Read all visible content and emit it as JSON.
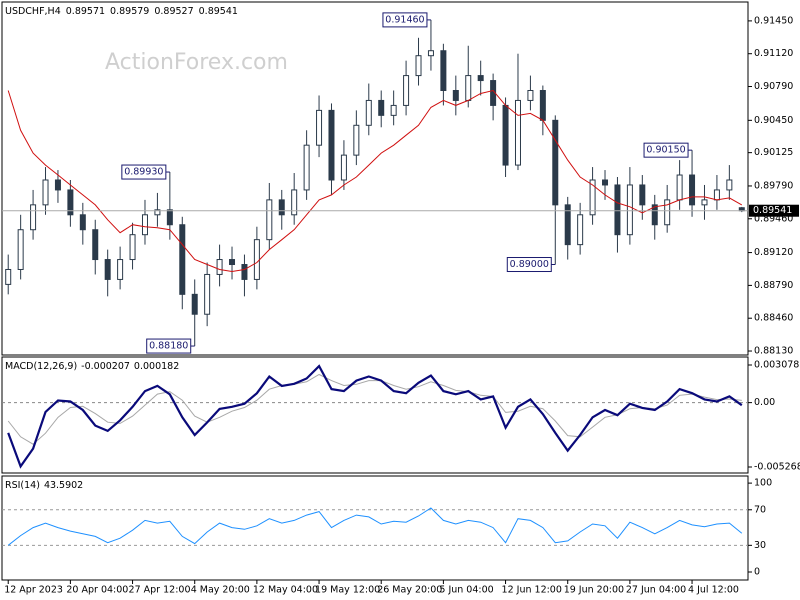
{
  "chart_data": [
    {
      "type": "candlestick",
      "title": "USDCHF,H4",
      "watermark": "ActionForex.com",
      "categories": [
        "12 Apr 2023",
        null,
        null,
        null,
        null,
        "20 Apr 04:00",
        null,
        null,
        null,
        null,
        "27 Apr 12:00",
        null,
        null,
        null,
        null,
        "4 May 20:00",
        null,
        null,
        null,
        null,
        "12 May 04:00",
        null,
        null,
        null,
        null,
        "19 May 12:00",
        null,
        null,
        null,
        null,
        "26 May 20:00",
        null,
        null,
        null,
        null,
        "5 Jun 04:00",
        null,
        null,
        null,
        null,
        "12 Jun 12:00",
        null,
        null,
        null,
        null,
        "19 Jun 20:00",
        null,
        null,
        null,
        null,
        "27 Jun 04:00",
        null,
        null,
        null,
        null,
        "4 Jul 12:00",
        null,
        null,
        null,
        null
      ],
      "open": [
        0.888,
        0.8895,
        0.8935,
        0.896,
        0.8985,
        0.8975,
        0.895,
        0.8935,
        0.8905,
        0.8885,
        0.8905,
        0.893,
        0.895,
        0.8955,
        0.894,
        0.887,
        0.885,
        0.889,
        0.8905,
        0.89,
        0.8885,
        0.8925,
        0.8965,
        0.895,
        0.8975,
        0.902,
        0.9055,
        0.8985,
        0.901,
        0.904,
        0.9065,
        0.905,
        0.906,
        0.909,
        0.911,
        0.9115,
        0.9075,
        0.9065,
        0.909,
        0.9085,
        0.906,
        0.9,
        0.9065,
        0.9075,
        0.9045,
        0.896,
        0.892,
        0.895,
        0.8985,
        0.898,
        0.893,
        0.898,
        0.896,
        0.894,
        0.8965,
        0.899,
        0.896,
        0.8965,
        0.8975,
        0.89571
      ],
      "high": [
        0.891,
        0.895,
        0.8975,
        0.8998,
        0.8995,
        0.8985,
        0.8962,
        0.8945,
        0.8915,
        0.8918,
        0.8942,
        0.8965,
        0.8972,
        0.8993,
        0.8948,
        0.8885,
        0.8902,
        0.892,
        0.8918,
        0.891,
        0.8938,
        0.8982,
        0.8975,
        0.8992,
        0.9035,
        0.907,
        0.9062,
        0.9025,
        0.9055,
        0.9082,
        0.9075,
        0.9075,
        0.9105,
        0.9128,
        0.9146,
        0.9122,
        0.909,
        0.912,
        0.9105,
        0.9092,
        0.9068,
        0.9112,
        0.909,
        0.908,
        0.905,
        0.8968,
        0.8962,
        0.8998,
        0.8995,
        0.8988,
        0.8998,
        0.899,
        0.897,
        0.898,
        0.9005,
        0.9015,
        0.898,
        0.899,
        0.9,
        0.89579
      ],
      "low": [
        0.887,
        0.8885,
        0.8925,
        0.895,
        0.8962,
        0.8938,
        0.892,
        0.889,
        0.8868,
        0.8875,
        0.8895,
        0.892,
        0.8938,
        0.8925,
        0.8855,
        0.8818,
        0.8838,
        0.8878,
        0.8885,
        0.8868,
        0.8875,
        0.8915,
        0.8935,
        0.894,
        0.8965,
        0.9008,
        0.897,
        0.8975,
        0.9,
        0.903,
        0.9038,
        0.904,
        0.905,
        0.908,
        0.9095,
        0.906,
        0.905,
        0.9058,
        0.907,
        0.9045,
        0.8988,
        0.8995,
        0.9055,
        0.903,
        0.89,
        0.8905,
        0.891,
        0.894,
        0.8965,
        0.8912,
        0.892,
        0.8945,
        0.8925,
        0.8932,
        0.8955,
        0.8948,
        0.8945,
        0.8955,
        0.8965,
        0.89527
      ],
      "close": [
        0.8895,
        0.8935,
        0.896,
        0.8985,
        0.8975,
        0.895,
        0.8935,
        0.8905,
        0.8885,
        0.8905,
        0.893,
        0.895,
        0.8955,
        0.894,
        0.887,
        0.885,
        0.889,
        0.8905,
        0.89,
        0.8885,
        0.8925,
        0.8965,
        0.895,
        0.8975,
        0.902,
        0.9055,
        0.8985,
        0.901,
        0.904,
        0.9065,
        0.905,
        0.906,
        0.909,
        0.911,
        0.9115,
        0.9075,
        0.9065,
        0.909,
        0.9085,
        0.906,
        0.9,
        0.9065,
        0.9075,
        0.9045,
        0.896,
        0.892,
        0.895,
        0.8985,
        0.898,
        0.893,
        0.898,
        0.896,
        0.894,
        0.8965,
        0.899,
        0.896,
        0.8965,
        0.8975,
        0.8985,
        0.89541
      ],
      "color": "#2b3a4a",
      "series": [
        {
          "color": "#d01010",
          "values": [
            0.9075,
            0.9035,
            0.9012,
            0.9,
            0.899,
            0.898,
            0.897,
            0.896,
            0.8945,
            0.8932,
            0.894,
            0.8938,
            0.8937,
            0.8935,
            0.892,
            0.8905,
            0.89,
            0.8895,
            0.8893,
            0.8895,
            0.8902,
            0.8915,
            0.8925,
            0.8935,
            0.895,
            0.8965,
            0.897,
            0.898,
            0.8988,
            0.9,
            0.9012,
            0.902,
            0.903,
            0.904,
            0.9058,
            0.9065,
            0.906,
            0.9065,
            0.9072,
            0.9075,
            0.906,
            0.905,
            0.9052,
            0.9045,
            0.9025,
            0.9005,
            0.8988,
            0.898,
            0.897,
            0.8962,
            0.8958,
            0.8952,
            0.8958,
            0.896,
            0.8965,
            0.8968,
            0.8968,
            0.8965,
            0.8967,
            0.896
          ]
        }
      ],
      "annotations": [
        {
          "label": "0.91460",
          "value": 0.9146
        },
        {
          "label": "0.89930",
          "value": 0.8993
        },
        {
          "label": "0.88180",
          "value": 0.8818
        },
        {
          "label": "0.90150",
          "value": 0.9015
        },
        {
          "label": "0.89000",
          "value": 0.89
        }
      ],
      "ylim": [
        0.8809,
        0.9164
      ],
      "yticks": [
        {
          "value": 0.8813,
          "label": "0.88130"
        },
        {
          "value": 0.8846,
          "label": "0.88460"
        },
        {
          "value": 0.8879,
          "label": "0.88790"
        },
        {
          "value": 0.8912,
          "label": "0.89120"
        },
        {
          "value": 0.8946,
          "label": "0.89460"
        },
        {
          "value": 0.8979,
          "label": "0.89790"
        },
        0.90125,
        {
          "value": 0.9045,
          "label": "0.90450"
        },
        {
          "value": 0.9079,
          "label": "0.90790"
        },
        {
          "value": 0.9112,
          "label": "0.91120"
        },
        {
          "value": 0.9145,
          "label": "0.91450"
        }
      ]
    },
    {
      "type": "macd",
      "title": "MACD(12,26,9)",
      "series": [
        {
          "color": "#0a0a7a",
          "values": [
            -0.00248,
            -0.00522,
            -0.00376,
            -0.00077,
            0.00017,
            9e-05,
            -0.0006,
            -0.00188,
            -0.00231,
            -0.00145,
            -0.00034,
            0.00094,
            0.00137,
            0.00068,
            -0.0012,
            -0.00265,
            -0.00162,
            -0.00051,
            -0.00034,
            -9e-05,
            0.00077,
            0.00214,
            0.00137,
            0.00154,
            0.00197,
            0.00299,
            0.00111,
            0.00094,
            0.0018,
            0.00214,
            0.0018,
            0.00094,
            0.00077,
            0.00162,
            0.00222,
            0.00094,
            0.00068,
            0.00094,
            0.00026,
            0.00051,
            -0.00205,
            -0.00034,
            0.00026,
            -0.00094,
            -0.00248,
            -0.00393,
            -0.00265,
            -0.0012,
            -0.0006,
            -0.00103,
            -9e-05,
            -0.00043,
            -0.0006,
            9e-05,
            0.00111,
            0.00077,
            0.00026,
            9e-05,
            0.00051,
            -0.000207
          ]
        },
        {
          "color": "#a8a8a8",
          "values": [
            -0.0015,
            -0.0028,
            -0.0034,
            -0.0025,
            -0.0012,
            -0.0004,
            -0.0003,
            -0.0009,
            -0.0016,
            -0.0017,
            -0.0011,
            -0.0002,
            0.0007,
            0.0009,
            0.0002,
            -0.0011,
            -0.0016,
            -0.0012,
            -0.0007,
            -0.0004,
            0.0002,
            0.0011,
            0.0014,
            0.0015,
            0.0017,
            0.0023,
            0.0018,
            0.0014,
            0.0015,
            0.0018,
            0.0018,
            0.0014,
            0.0011,
            0.0013,
            0.0017,
            0.0014,
            0.001,
            0.0009,
            0.0006,
            0.0005,
            -0.0008,
            -0.0007,
            -0.0003,
            -0.0005,
            -0.0015,
            -0.0027,
            -0.0028,
            -0.002,
            -0.0012,
            -0.001,
            -0.0005,
            -0.0004,
            -0.0005,
            -0.0002,
            0.0006,
            0.0007,
            0.00045,
            0.00025,
            0.0003,
            0.000182
          ]
        }
      ],
      "ylim": [
        -0.005759,
        0.003733
      ],
      "yticks": [
        0.003078,
        {
          "value": 0,
          "label": "0.00"
        },
        -0.005268
      ],
      "zero_line": true
    },
    {
      "type": "line",
      "title": "RSI(14)",
      "series": [
        {
          "color": "#1e90ff",
          "values": [
            30,
            41,
            50,
            55,
            50,
            46,
            43,
            40,
            33,
            38,
            47,
            58,
            55,
            57,
            40,
            32,
            45,
            55,
            50,
            48,
            52,
            60,
            55,
            58,
            64,
            68,
            50,
            58,
            64,
            62,
            54,
            57,
            56,
            63,
            72,
            58,
            54,
            58,
            56,
            50,
            33,
            60,
            58,
            50,
            33,
            35,
            45,
            54,
            52,
            38,
            56,
            50,
            43,
            50,
            58,
            53,
            51,
            54,
            55,
            43.5902
          ]
        }
      ],
      "ylim": [
        -9,
        108
      ],
      "yticks": [
        100,
        70,
        30,
        0
      ],
      "levels": [
        70,
        30
      ]
    }
  ]
}
